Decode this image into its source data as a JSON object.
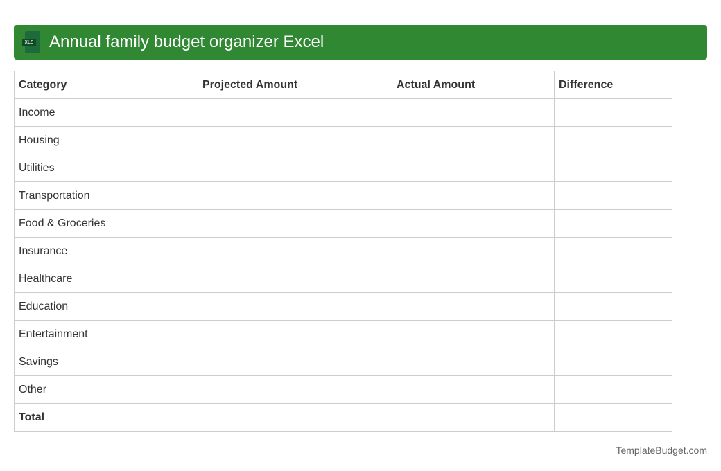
{
  "header": {
    "title": "Annual family budget organizer Excel",
    "icon_label": "XLS",
    "color": "#318833"
  },
  "table": {
    "columns": [
      "Category",
      "Projected Amount",
      "Actual Amount",
      "Difference"
    ],
    "rows": [
      "Income",
      "Housing",
      "Utilities",
      "Transportation",
      "Food & Groceries",
      "Insurance",
      "Healthcare",
      "Education",
      "Entertainment",
      "Savings",
      "Other",
      "Total"
    ]
  },
  "footer": {
    "text": "TemplateBudget.com"
  }
}
